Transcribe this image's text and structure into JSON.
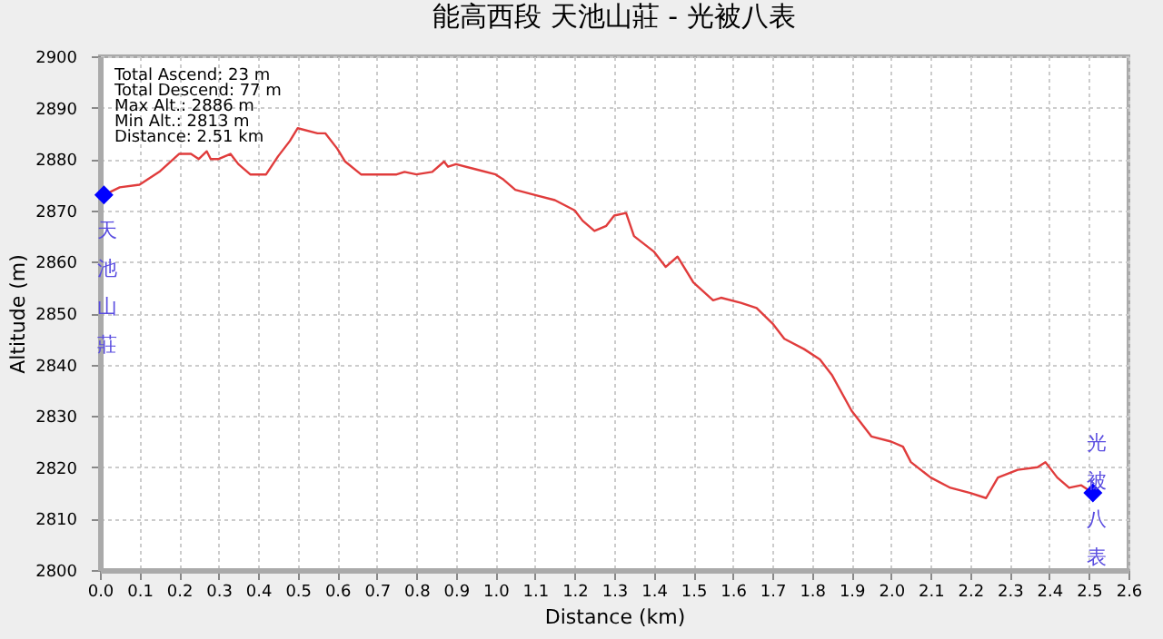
{
  "chart_data": {
    "type": "line",
    "title": "能高西段  天池山莊 - 光被八表",
    "xlabel": "Distance (km)",
    "ylabel": "Altitude (m)",
    "xlim": [
      0,
      2.6
    ],
    "xticks": [
      {
        "value": 0,
        "label": "0.0"
      },
      {
        "value": 0.1,
        "label": "0.1"
      },
      {
        "value": 0.2,
        "label": "0.2"
      },
      {
        "value": 0.3,
        "label": "0.3"
      },
      {
        "value": 0.4,
        "label": "0.4"
      },
      {
        "value": 0.5,
        "label": "0.5"
      },
      {
        "value": 0.6,
        "label": "0.6"
      },
      {
        "value": 0.7,
        "label": "0.7"
      },
      {
        "value": 0.8,
        "label": "0.8"
      },
      {
        "value": 0.9,
        "label": "0.9"
      },
      {
        "value": 1,
        "label": "1.0"
      },
      {
        "value": 1.1,
        "label": "1.1"
      },
      {
        "value": 1.2,
        "label": "1.2"
      },
      {
        "value": 1.3,
        "label": "1.3"
      },
      {
        "value": 1.4,
        "label": "1.4"
      },
      {
        "value": 1.5,
        "label": "1.5"
      },
      {
        "value": 1.6,
        "label": "1.6"
      },
      {
        "value": 1.7,
        "label": "1.7"
      },
      {
        "value": 1.8,
        "label": "1.8"
      },
      {
        "value": 1.9,
        "label": "1.9"
      },
      {
        "value": 2,
        "label": "2.0"
      },
      {
        "value": 2.1,
        "label": "2.1"
      },
      {
        "value": 2.2,
        "label": "2.2"
      },
      {
        "value": 2.3,
        "label": "2.3"
      },
      {
        "value": 2.4,
        "label": "2.4"
      },
      {
        "value": 2.5,
        "label": "2.5"
      },
      {
        "value": 2.6,
        "label": "2.6"
      }
    ],
    "ylim": [
      2800,
      2900
    ],
    "yticks": [
      2800,
      2810,
      2820,
      2830,
      2840,
      2850,
      2860,
      2870,
      2880,
      2890,
      2900
    ],
    "grid": true,
    "series": [
      {
        "type": "line",
        "color": "#e03c3c",
        "marker": "none",
        "line_style": "solid",
        "x": [
          0.01,
          0.05,
          0.1,
          0.15,
          0.2,
          0.23,
          0.25,
          0.27,
          0.28,
          0.3,
          0.33,
          0.35,
          0.38,
          0.42,
          0.45,
          0.48,
          0.5,
          0.55,
          0.57,
          0.6,
          0.62,
          0.66,
          0.75,
          0.77,
          0.8,
          0.84,
          0.87,
          0.88,
          0.9,
          0.95,
          1.0,
          1.02,
          1.05,
          1.1,
          1.15,
          1.2,
          1.22,
          1.25,
          1.28,
          1.3,
          1.33,
          1.35,
          1.4,
          1.43,
          1.46,
          1.5,
          1.55,
          1.57,
          1.62,
          1.66,
          1.7,
          1.73,
          1.78,
          1.82,
          1.85,
          1.9,
          1.95,
          2.0,
          2.03,
          2.05,
          2.1,
          2.15,
          2.2,
          2.24,
          2.27,
          2.32,
          2.37,
          2.39,
          2.42,
          2.45,
          2.48,
          2.5,
          2.51
        ],
        "values": [
          2873,
          2874.5,
          2875,
          2877.5,
          2881,
          2881,
          2880,
          2881.5,
          2880,
          2880,
          2881,
          2879,
          2877,
          2877,
          2880.5,
          2883.5,
          2886,
          2885,
          2885,
          2882,
          2879.5,
          2877,
          2877,
          2877.5,
          2877,
          2877.5,
          2879.5,
          2878.5,
          2879,
          2878,
          2877,
          2876,
          2874,
          2873,
          2872,
          2870,
          2868,
          2866,
          2867,
          2869,
          2869.5,
          2865,
          2862,
          2859,
          2861,
          2856,
          2852.5,
          2853,
          2852,
          2851,
          2848,
          2845,
          2843,
          2841,
          2838,
          2831,
          2826,
          2825,
          2824,
          2821,
          2818,
          2816,
          2815,
          2814,
          2818,
          2819.5,
          2820,
          2821,
          2818,
          2816,
          2816.5,
          2815.5,
          2815
        ]
      },
      {
        "type": "scatter",
        "color": "#0000ff",
        "marker": "diamond",
        "x": [
          0.01,
          2.51
        ],
        "values": [
          2873,
          2815
        ]
      }
    ],
    "annotations": [
      {
        "text": "天池山莊",
        "x": 0.01,
        "y": 2873
      },
      {
        "text": "光被八表",
        "x": 2.51,
        "y": 2815
      },
      "Total Ascend: 23 m",
      "Total Descend: 77 m",
      "Max Alt.: 2886 m",
      "Min Alt.: 2813 m",
      "Distance: 2.51 km"
    ]
  }
}
